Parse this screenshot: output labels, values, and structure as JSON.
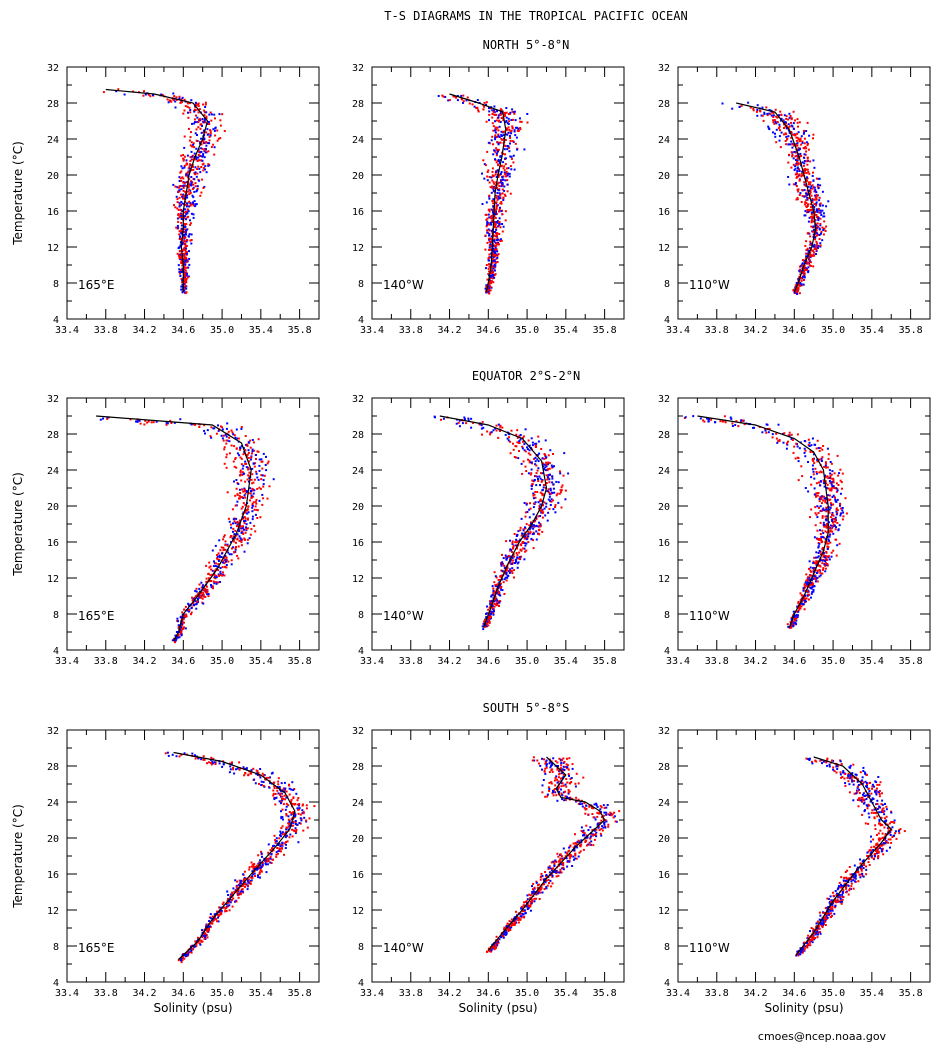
{
  "figure": {
    "title": "T-S DIAGRAMS IN THE TROPICAL PACIFIC OCEAN",
    "credit": "cmoes@ncep.noaa.gov",
    "colors": {
      "series_a": "#ff0000",
      "series_b": "#0000ff",
      "mean": "#000000"
    }
  },
  "chart_data": {
    "type": "scatter",
    "xlabel": "Solinity (psu)",
    "ylabel": "Temperature (°C)",
    "xlim": [
      33.4,
      36.0
    ],
    "ylim": [
      4,
      32
    ],
    "x_ticks": [
      "33.4",
      "33.8",
      "34.2",
      "34.6",
      "35.0",
      "35.4",
      "35.8"
    ],
    "y_ticks": [
      "4",
      "8",
      "12",
      "16",
      "20",
      "24",
      "28",
      "32"
    ],
    "rows": [
      {
        "title": "NORTH 5°-8°N",
        "panels": [
          {
            "lon": "165°E",
            "mean": [
              [
                33.8,
                29.5
              ],
              [
                34.3,
                29
              ],
              [
                34.7,
                28
              ],
              [
                34.85,
                26
              ],
              [
                34.8,
                24
              ],
              [
                34.72,
                22
              ],
              [
                34.66,
                20
              ],
              [
                34.63,
                18
              ],
              [
                34.6,
                16
              ],
              [
                34.6,
                14
              ],
              [
                34.58,
                12
              ],
              [
                34.6,
                10
              ],
              [
                34.6,
                8
              ],
              [
                34.6,
                7
              ]
            ]
          },
          {
            "lon": "140°W",
            "mean": [
              [
                34.2,
                29
              ],
              [
                34.5,
                28
              ],
              [
                34.75,
                27
              ],
              [
                34.78,
                25
              ],
              [
                34.74,
                22
              ],
              [
                34.7,
                20
              ],
              [
                34.67,
                18
              ],
              [
                34.66,
                16
              ],
              [
                34.65,
                14
              ],
              [
                34.64,
                12
              ],
              [
                34.63,
                10
              ],
              [
                34.6,
                8
              ],
              [
                34.58,
                7
              ]
            ]
          },
          {
            "lon": "110°W",
            "mean": [
              [
                34.0,
                28
              ],
              [
                34.4,
                27
              ],
              [
                34.55,
                25
              ],
              [
                34.65,
                22
              ],
              [
                34.7,
                20
              ],
              [
                34.75,
                18
              ],
              [
                34.8,
                16
              ],
              [
                34.82,
                14
              ],
              [
                34.78,
                12
              ],
              [
                34.7,
                10
              ],
              [
                34.64,
                8
              ],
              [
                34.6,
                7
              ]
            ]
          }
        ]
      },
      {
        "title": "EQUATOR 2°S-2°N",
        "panels": [
          {
            "lon": "165°E",
            "mean": [
              [
                33.7,
                30
              ],
              [
                34.3,
                29.5
              ],
              [
                34.9,
                29
              ],
              [
                35.2,
                27
              ],
              [
                35.3,
                24
              ],
              [
                35.25,
                20
              ],
              [
                35.15,
                17
              ],
              [
                34.95,
                13
              ],
              [
                34.75,
                10
              ],
              [
                34.6,
                8
              ],
              [
                34.55,
                6
              ],
              [
                34.5,
                5
              ]
            ]
          },
          {
            "lon": "140°W",
            "mean": [
              [
                34.1,
                30
              ],
              [
                34.6,
                29
              ],
              [
                34.95,
                27.5
              ],
              [
                35.15,
                25
              ],
              [
                35.2,
                22
              ],
              [
                35.15,
                20
              ],
              [
                35.05,
                18
              ],
              [
                34.92,
                16
              ],
              [
                34.8,
                13.5
              ],
              [
                34.7,
                11
              ],
              [
                34.62,
                8.5
              ],
              [
                34.55,
                6.5
              ]
            ]
          },
          {
            "lon": "110°W",
            "mean": [
              [
                33.6,
                30
              ],
              [
                34.2,
                29
              ],
              [
                34.6,
                27.5
              ],
              [
                34.8,
                26
              ],
              [
                34.9,
                24
              ],
              [
                34.95,
                20
              ],
              [
                34.95,
                17
              ],
              [
                34.9,
                15
              ],
              [
                34.8,
                12.5
              ],
              [
                34.7,
                10
              ],
              [
                34.6,
                8
              ],
              [
                34.55,
                6.5
              ]
            ]
          }
        ]
      },
      {
        "title": "SOUTH 5°-8°S",
        "panels": [
          {
            "lon": "165°E",
            "mean": [
              [
                34.5,
                29.5
              ],
              [
                35.0,
                28.5
              ],
              [
                35.4,
                27
              ],
              [
                35.65,
                25
              ],
              [
                35.75,
                23
              ],
              [
                35.7,
                21
              ],
              [
                35.55,
                19
              ],
              [
                35.3,
                16
              ],
              [
                35.1,
                13.5
              ],
              [
                34.9,
                11
              ],
              [
                34.75,
                8.5
              ],
              [
                34.6,
                7
              ],
              [
                34.55,
                6.5
              ]
            ]
          },
          {
            "lon": "140°W",
            "mean": [
              [
                35.2,
                29
              ],
              [
                35.4,
                27
              ],
              [
                35.3,
                25.5
              ],
              [
                35.35,
                24.5
              ],
              [
                35.6,
                24
              ],
              [
                35.75,
                23
              ],
              [
                35.8,
                22
              ],
              [
                35.5,
                19
              ],
              [
                35.2,
                15.5
              ],
              [
                34.95,
                12
              ],
              [
                34.75,
                9.5
              ],
              [
                34.6,
                7.5
              ]
            ]
          },
          {
            "lon": "110°W",
            "mean": [
              [
                34.8,
                29
              ],
              [
                35.1,
                28
              ],
              [
                35.3,
                26
              ],
              [
                35.4,
                24
              ],
              [
                35.5,
                22
              ],
              [
                35.6,
                21
              ],
              [
                35.5,
                19.5
              ],
              [
                35.25,
                16.5
              ],
              [
                35.0,
                13
              ],
              [
                34.8,
                9.5
              ],
              [
                34.62,
                7
              ]
            ]
          }
        ]
      }
    ]
  }
}
